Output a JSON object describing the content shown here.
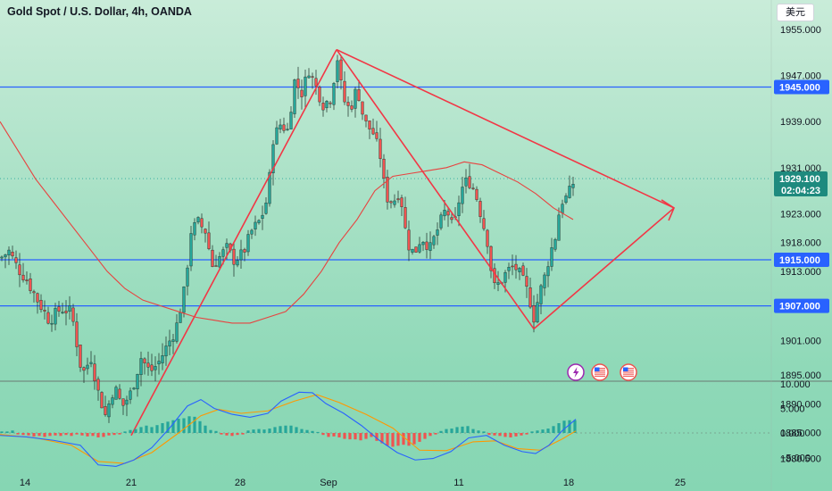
{
  "header": {
    "title": "Gold Spot / U.S. Dollar, 4h, OANDA",
    "currency_button": "美元"
  },
  "colors": {
    "up": "#26a69a",
    "down": "#ef5350",
    "level_line": "#2962ff",
    "drawing": "#f23645",
    "ma": "#e8423f",
    "macd": "#2962ff",
    "signal": "#ff9800"
  },
  "icons": [
    "lightning-icon",
    "us-flag-icon",
    "us-flag-icon"
  ],
  "chart_data": [
    {
      "type": "candlestick",
      "title": "Gold Spot / U.S. Dollar, 4h, OANDA",
      "ylim": [
        1879,
        1961
      ],
      "x_tick_labels": [
        "14",
        "21",
        "28",
        "Sep",
        "11",
        "18",
        "25"
      ],
      "y_tick_labels": [
        "1955.000",
        "1947.000",
        "1939.000",
        "1931.000",
        "1923.000",
        "1918.000",
        "1913.000",
        "1907.000",
        "1901.000",
        "1895.000",
        "1890.000",
        "1885.000",
        "1880.500"
      ],
      "y_ticks": [
        1955,
        1947,
        1939,
        1931,
        1923,
        1918,
        1913,
        1907,
        1901,
        1895,
        1890,
        1885,
        1880.5
      ],
      "horizontal_levels": [
        {
          "value": 1945.0,
          "label": "1945.000"
        },
        {
          "value": 1915.0,
          "label": "1915.000"
        },
        {
          "value": 1907.0,
          "label": "1907.000"
        }
      ],
      "last_price": {
        "value": 1929.1,
        "label": "1929.100",
        "countdown": "02:04:23"
      },
      "close_path": [
        [
          2,
          1915.5
        ],
        [
          10,
          1916.5
        ],
        [
          20,
          1913.5
        ],
        [
          30,
          1911.5
        ],
        [
          42,
          1908
        ],
        [
          55,
          1904.5
        ],
        [
          68,
          1906.5
        ],
        [
          80,
          1906
        ],
        [
          92,
          1895
        ],
        [
          102,
          1898
        ],
        [
          110,
          1892
        ],
        [
          118,
          1888
        ],
        [
          128,
          1893
        ],
        [
          137,
          1889.5
        ],
        [
          147,
          1892
        ],
        [
          158,
          1898
        ],
        [
          168,
          1895.5
        ],
        [
          177,
          1897
        ],
        [
          187,
          1900
        ],
        [
          197,
          1903
        ],
        [
          207,
          1910
        ],
        [
          214,
          1920
        ],
        [
          222,
          1921.5
        ],
        [
          230,
          1920
        ],
        [
          238,
          1914
        ],
        [
          246,
          1915.5
        ],
        [
          254,
          1917
        ],
        [
          262,
          1915
        ],
        [
          272,
          1916
        ],
        [
          282,
          1920
        ],
        [
          292,
          1922
        ],
        [
          300,
          1926
        ],
        [
          306,
          1936
        ],
        [
          314,
          1938.5
        ],
        [
          322,
          1937.5
        ],
        [
          330,
          1946
        ],
        [
          338,
          1944
        ],
        [
          346,
          1948
        ],
        [
          354,
          1945
        ],
        [
          362,
          1942
        ],
        [
          370,
          1943
        ],
        [
          378,
          1950
        ],
        [
          384,
          1943
        ],
        [
          392,
          1941
        ],
        [
          400,
          1945
        ],
        [
          408,
          1939
        ],
        [
          418,
          1937
        ],
        [
          426,
          1933
        ],
        [
          432,
          1926
        ],
        [
          440,
          1925
        ],
        [
          448,
          1927
        ],
        [
          456,
          1918
        ],
        [
          464,
          1916
        ],
        [
          472,
          1919
        ],
        [
          482,
          1917
        ],
        [
          492,
          1921
        ],
        [
          500,
          1924
        ],
        [
          508,
          1920
        ],
        [
          516,
          1927
        ],
        [
          524,
          1929
        ],
        [
          532,
          1927
        ],
        [
          540,
          1922
        ],
        [
          548,
          1917
        ],
        [
          552,
          1910
        ],
        [
          560,
          1911
        ],
        [
          568,
          1913
        ],
        [
          576,
          1914
        ],
        [
          584,
          1912
        ],
        [
          592,
          1909
        ],
        [
          598,
          1905
        ],
        [
          604,
          1909
        ],
        [
          610,
          1912
        ],
        [
          616,
          1916
        ],
        [
          622,
          1919
        ],
        [
          628,
          1925
        ],
        [
          636,
          1926
        ],
        [
          644,
          1929.1
        ]
      ],
      "moving_average": [
        [
          0,
          1939
        ],
        [
          20,
          1934
        ],
        [
          40,
          1929
        ],
        [
          60,
          1925
        ],
        [
          80,
          1921
        ],
        [
          100,
          1917
        ],
        [
          120,
          1913
        ],
        [
          140,
          1910
        ],
        [
          160,
          1908
        ],
        [
          180,
          1907
        ],
        [
          200,
          1906
        ],
        [
          220,
          1905
        ],
        [
          240,
          1904.5
        ],
        [
          260,
          1904
        ],
        [
          280,
          1904
        ],
        [
          300,
          1905
        ],
        [
          320,
          1906
        ],
        [
          340,
          1909
        ],
        [
          360,
          1913
        ],
        [
          380,
          1918
        ],
        [
          400,
          1922
        ],
        [
          420,
          1927
        ],
        [
          440,
          1929.5
        ],
        [
          460,
          1930
        ],
        [
          480,
          1930.5
        ],
        [
          500,
          1931
        ],
        [
          520,
          1932
        ],
        [
          540,
          1931.5
        ],
        [
          560,
          1930
        ],
        [
          580,
          1928.5
        ],
        [
          600,
          1926.5
        ],
        [
          620,
          1924
        ],
        [
          642,
          1922
        ]
      ],
      "drawings": [
        {
          "name": "leg-up",
          "points": [
            [
              147,
              1884.5
            ],
            [
              377,
              1951.5
            ]
          ]
        },
        {
          "name": "leg-down",
          "points": [
            [
              377,
              1951.5
            ],
            [
              598,
              1903
            ]
          ]
        },
        {
          "name": "upper-trendline",
          "points": [
            [
              377,
              1951.5
            ],
            [
              755,
              1924
            ]
          ]
        },
        {
          "name": "lower-trendline",
          "points": [
            [
              598,
              1903
            ],
            [
              755,
              1924
            ]
          ]
        }
      ],
      "arrow_tip": [
        755,
        1924
      ]
    },
    {
      "type": "macd",
      "ylim": [
        -7.5,
        10.5
      ],
      "y_tick_labels": [
        "10.000",
        "5.000",
        "0.000",
        "−5.000"
      ],
      "y_ticks": [
        10,
        5,
        0,
        -5
      ],
      "macd_line": [
        [
          0,
          -0.5
        ],
        [
          30,
          -0.8
        ],
        [
          60,
          -1.5
        ],
        [
          90,
          -2.5
        ],
        [
          110,
          -6.5
        ],
        [
          130,
          -6.8
        ],
        [
          150,
          -5.5
        ],
        [
          170,
          -3
        ],
        [
          190,
          1
        ],
        [
          210,
          5.5
        ],
        [
          225,
          6.8
        ],
        [
          240,
          5
        ],
        [
          260,
          3.8
        ],
        [
          280,
          3.2
        ],
        [
          300,
          4
        ],
        [
          315,
          6.5
        ],
        [
          335,
          8.3
        ],
        [
          350,
          8.2
        ],
        [
          365,
          6
        ],
        [
          385,
          4
        ],
        [
          405,
          1.5
        ],
        [
          425,
          -1.5
        ],
        [
          445,
          -4
        ],
        [
          465,
          -5.5
        ],
        [
          485,
          -5.2
        ],
        [
          505,
          -3.8
        ],
        [
          525,
          -1
        ],
        [
          545,
          -0.5
        ],
        [
          565,
          -2.5
        ],
        [
          585,
          -3.8
        ],
        [
          600,
          -4.2
        ],
        [
          615,
          -2.5
        ],
        [
          630,
          0.5
        ],
        [
          645,
          2.8
        ]
      ],
      "signal_line": [
        [
          0,
          -0.3
        ],
        [
          40,
          -1
        ],
        [
          80,
          -2.5
        ],
        [
          110,
          -5.8
        ],
        [
          140,
          -6.2
        ],
        [
          170,
          -4
        ],
        [
          200,
          0
        ],
        [
          225,
          3.5
        ],
        [
          245,
          4.8
        ],
        [
          270,
          4
        ],
        [
          300,
          4.5
        ],
        [
          330,
          6.5
        ],
        [
          355,
          7.8
        ],
        [
          380,
          6.2
        ],
        [
          410,
          3.8
        ],
        [
          440,
          1
        ],
        [
          470,
          -3.5
        ],
        [
          500,
          -3.6
        ],
        [
          530,
          -1.8
        ],
        [
          555,
          -1.6
        ],
        [
          580,
          -3.2
        ],
        [
          605,
          -3.5
        ],
        [
          630,
          -1.2
        ],
        [
          645,
          0.4
        ]
      ],
      "histogram": [
        [
          2,
          0.3
        ],
        [
          8,
          0.3
        ],
        [
          14,
          0.5
        ],
        [
          20,
          -0.3
        ],
        [
          26,
          -0.4
        ],
        [
          32,
          -0.5
        ],
        [
          38,
          -0.7
        ],
        [
          44,
          -0.6
        ],
        [
          50,
          -0.8
        ],
        [
          56,
          -0.6
        ],
        [
          62,
          -0.5
        ],
        [
          68,
          -0.6
        ],
        [
          74,
          -0.4
        ],
        [
          80,
          -0.6
        ],
        [
          86,
          -0.3
        ],
        [
          92,
          -0.5
        ],
        [
          98,
          -0.7
        ],
        [
          104,
          -0.6
        ],
        [
          110,
          -0.9
        ],
        [
          116,
          -0.8
        ],
        [
          122,
          -0.5
        ],
        [
          128,
          -0.4
        ],
        [
          134,
          -0.3
        ],
        [
          140,
          0.3
        ],
        [
          146,
          0.6
        ],
        [
          152,
          0.8
        ],
        [
          158,
          1.2
        ],
        [
          164,
          1.5
        ],
        [
          170,
          1.2
        ],
        [
          176,
          1.6
        ],
        [
          182,
          2
        ],
        [
          188,
          2.3
        ],
        [
          194,
          2.6
        ],
        [
          200,
          2.9
        ],
        [
          206,
          3
        ],
        [
          212,
          3.4
        ],
        [
          218,
          3.3
        ],
        [
          224,
          2.4
        ],
        [
          230,
          1.5
        ],
        [
          236,
          0.6
        ],
        [
          242,
          0.4
        ],
        [
          248,
          -0.3
        ],
        [
          254,
          -0.5
        ],
        [
          260,
          -0.6
        ],
        [
          266,
          -0.4
        ],
        [
          272,
          -0.3
        ],
        [
          278,
          0.5
        ],
        [
          284,
          0.7
        ],
        [
          290,
          0.8
        ],
        [
          296,
          0.7
        ],
        [
          302,
          0.9
        ],
        [
          308,
          1.2
        ],
        [
          314,
          1.4
        ],
        [
          320,
          1.5
        ],
        [
          326,
          1.5
        ],
        [
          332,
          1.2
        ],
        [
          338,
          0.8
        ],
        [
          344,
          0.6
        ],
        [
          350,
          0.4
        ],
        [
          356,
          0.2
        ],
        [
          362,
          -0.4
        ],
        [
          368,
          -0.8
        ],
        [
          374,
          -0.7
        ],
        [
          380,
          -0.9
        ],
        [
          386,
          -1.2
        ],
        [
          392,
          -1.3
        ],
        [
          398,
          -1.3
        ],
        [
          404,
          -1.5
        ],
        [
          410,
          -1.2
        ],
        [
          416,
          -0.8
        ],
        [
          422,
          -1.6
        ],
        [
          428,
          -2.1
        ],
        [
          434,
          -2.6
        ],
        [
          440,
          -2.8
        ],
        [
          446,
          -2.6
        ],
        [
          452,
          -2.4
        ],
        [
          458,
          -2.6
        ],
        [
          464,
          -2.3
        ],
        [
          470,
          -1.8
        ],
        [
          476,
          -1.2
        ],
        [
          482,
          -0.6
        ],
        [
          488,
          -0.3
        ],
        [
          494,
          0.4
        ],
        [
          500,
          0.8
        ],
        [
          506,
          0.9
        ],
        [
          512,
          1.2
        ],
        [
          518,
          1.3
        ],
        [
          524,
          1.4
        ],
        [
          530,
          0.8
        ],
        [
          536,
          0.5
        ],
        [
          542,
          0.3
        ],
        [
          548,
          -0.4
        ],
        [
          554,
          -0.5
        ],
        [
          560,
          -0.6
        ],
        [
          566,
          -0.8
        ],
        [
          572,
          -0.9
        ],
        [
          578,
          -0.7
        ],
        [
          584,
          -0.5
        ],
        [
          590,
          -0.3
        ],
        [
          596,
          0.3
        ],
        [
          602,
          0.5
        ],
        [
          608,
          0.7
        ],
        [
          614,
          0.9
        ],
        [
          620,
          1.4
        ],
        [
          626,
          2
        ],
        [
          632,
          2.5
        ],
        [
          638,
          2.6
        ],
        [
          644,
          2.6
        ]
      ]
    }
  ]
}
